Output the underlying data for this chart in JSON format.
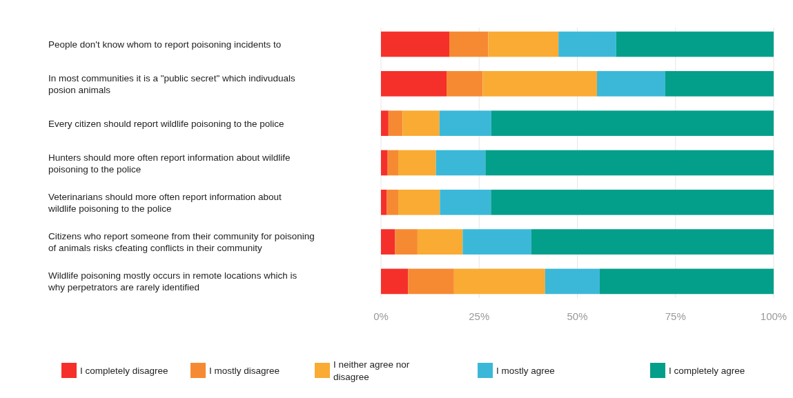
{
  "chart_data": {
    "type": "bar",
    "orientation": "horizontal",
    "stacked": true,
    "categories": [
      "People don't know whom to report poisoning incidents to",
      "In most communities it is a \"public secret\" which indivuduals posion animals",
      "Every citizen should report wildlife poisoning to the police",
      "Hunters should  more often report information about wildlife poisoning to the police",
      "Veterinarians should  more often report information about wildlife poisoning to the police",
      "Citizens who report someone from their community for poisoning of animals risks cfeating conflicts in  their community",
      "Wildlife poisoning mostly occurs in remote locations which is why perpetrators are rarely identified"
    ],
    "series": [
      {
        "name": "I completely disagree",
        "color": "#f5302a",
        "values": [
          17.4,
          16.7,
          1.9,
          1.7,
          1.5,
          3.6,
          6.9
        ]
      },
      {
        "name": "I mostly disagree",
        "color": "#f68a33",
        "values": [
          9.9,
          9.2,
          3.6,
          2.7,
          2.9,
          5.7,
          11.7
        ]
      },
      {
        "name": "I neither agree nor disagree",
        "color": "#f9ab33",
        "values": [
          17.9,
          29.1,
          9.4,
          9.6,
          10.6,
          11.5,
          23.2
        ]
      },
      {
        "name": "I mostly agree",
        "color": "#3bb8d8",
        "values": [
          14.7,
          17.4,
          13.2,
          12.6,
          13.0,
          17.5,
          13.9
        ]
      },
      {
        "name": "I completely agree",
        "color": "#039f8a",
        "values": [
          40.1,
          27.6,
          71.9,
          73.4,
          72.0,
          61.7,
          44.3
        ]
      }
    ],
    "xlim": [
      0,
      100
    ],
    "xticks": [
      {
        "value": 0,
        "label": "0%"
      },
      {
        "value": 25,
        "label": "25%"
      },
      {
        "value": 50,
        "label": "50%"
      },
      {
        "value": 75,
        "label": "75%"
      },
      {
        "value": 100,
        "label": "100%"
      }
    ],
    "grid": "x",
    "legend": "bottom"
  }
}
